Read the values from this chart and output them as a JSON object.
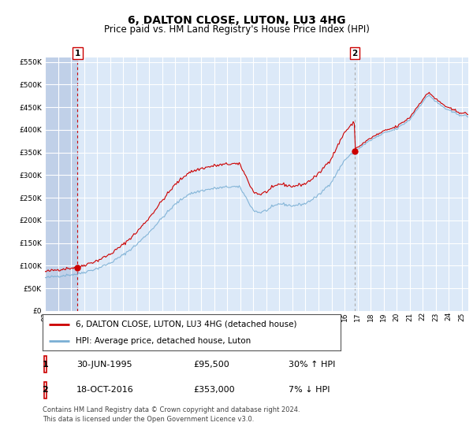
{
  "title": "6, DALTON CLOSE, LUTON, LU3 4HG",
  "subtitle": "Price paid vs. HM Land Registry's House Price Index (HPI)",
  "legend_line1": "6, DALTON CLOSE, LUTON, LU3 4HG (detached house)",
  "legend_line2": "HPI: Average price, detached house, Luton",
  "transaction1_date": "30-JUN-1995",
  "transaction1_price": "£95,500",
  "transaction1_hpi": "30% ↑ HPI",
  "transaction1_year": 1995.5,
  "transaction1_value": 95500,
  "transaction2_date": "18-OCT-2016",
  "transaction2_price": "£353,000",
  "transaction2_hpi": "7% ↓ HPI",
  "transaction2_year": 2016.79,
  "transaction2_value": 353000,
  "ylim": [
    0,
    560000
  ],
  "yticks": [
    0,
    50000,
    100000,
    150000,
    200000,
    250000,
    300000,
    350000,
    400000,
    450000,
    500000,
    550000
  ],
  "xmin": 1993.0,
  "xmax": 2025.5,
  "background_color": "#dce9f8",
  "hatch_color": "#c0d0e8",
  "grid_color": "#ffffff",
  "red_line_color": "#cc0000",
  "blue_line_color": "#7aafd4",
  "footer": "Contains HM Land Registry data © Crown copyright and database right 2024.\nThis data is licensed under the Open Government Licence v3.0.",
  "title_fontsize": 10,
  "subtitle_fontsize": 8.5,
  "tick_fontsize": 6.5,
  "legend_fontsize": 7.5,
  "table_fontsize": 8,
  "footer_fontsize": 6
}
